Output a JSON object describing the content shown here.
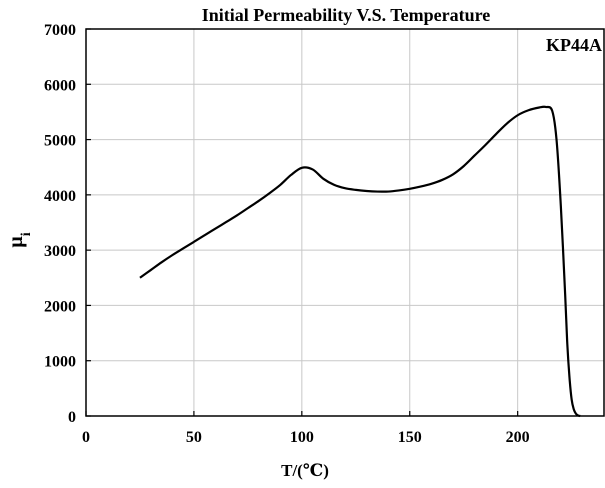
{
  "chart_data": {
    "type": "line",
    "title": "Initial Permeability V.S. Temperature",
    "xlabel": "T/(℃)",
    "ylabel_main": "μ",
    "ylabel_sub": "i",
    "annotation": "KP44A",
    "xlim": [
      0,
      240
    ],
    "ylim": [
      0,
      7000
    ],
    "x_ticks": [
      0,
      50,
      100,
      150,
      200
    ],
    "y_ticks": [
      0,
      1000,
      2000,
      3000,
      4000,
      5000,
      6000,
      7000
    ],
    "grid": true,
    "series": [
      {
        "x": [
          25,
          30,
          35,
          40,
          45,
          50,
          55,
          60,
          65,
          70,
          75,
          80,
          85,
          90,
          95,
          100,
          105,
          110,
          115,
          120,
          125,
          130,
          135,
          140,
          145,
          150,
          155,
          160,
          165,
          170,
          175,
          180,
          185,
          190,
          195,
          200,
          205,
          210,
          213,
          216,
          218,
          220,
          222,
          223,
          224,
          225,
          226,
          227,
          228,
          229
        ],
        "y": [
          2500,
          2640,
          2780,
          2910,
          3030,
          3150,
          3270,
          3390,
          3510,
          3630,
          3760,
          3890,
          4030,
          4180,
          4360,
          4490,
          4460,
          4290,
          4180,
          4120,
          4090,
          4070,
          4060,
          4060,
          4080,
          4110,
          4150,
          4200,
          4270,
          4370,
          4520,
          4710,
          4900,
          5100,
          5290,
          5440,
          5530,
          5580,
          5590,
          5520,
          5000,
          3800,
          2200,
          1300,
          700,
          300,
          120,
          40,
          10,
          0
        ]
      }
    ],
    "line_color": "#000000",
    "grid_color": "#c8c8c8"
  }
}
